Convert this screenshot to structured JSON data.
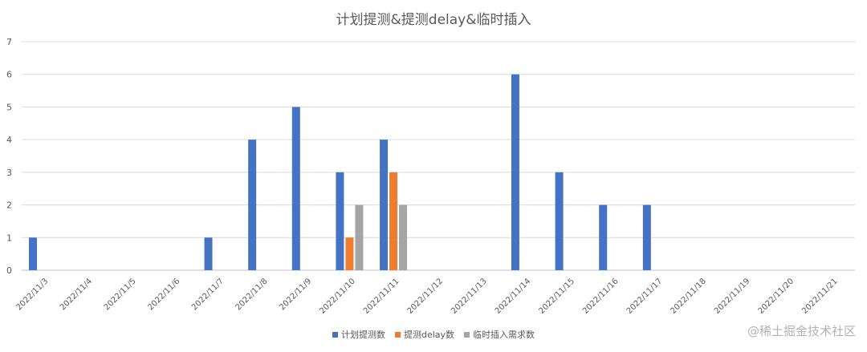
{
  "chart_data": {
    "type": "bar",
    "title": "计划提测&提测delay&临时插入",
    "xlabel": "",
    "ylabel": "",
    "ylim": [
      0,
      7
    ],
    "yticks": [
      0,
      1,
      2,
      3,
      4,
      5,
      6,
      7
    ],
    "grid": true,
    "legend_position": "bottom",
    "categories": [
      "2022/11/3",
      "2022/11/4",
      "2022/11/5",
      "2022/11/6",
      "2022/11/7",
      "2022/11/8",
      "2022/11/9",
      "2022/11/10",
      "2022/11/11",
      "2022/11/12",
      "2022/11/13",
      "2022/11/14",
      "2022/11/15",
      "2022/11/16",
      "2022/11/17",
      "2022/11/18",
      "2022/11/19",
      "2022/11/20",
      "2022/11/21"
    ],
    "series": [
      {
        "name": "计划提测数",
        "color": "#4472c4",
        "values": [
          1,
          0,
          0,
          0,
          1,
          4,
          5,
          3,
          4,
          0,
          0,
          6,
          3,
          2,
          2,
          0,
          0,
          0,
          0
        ]
      },
      {
        "name": "提测delay数",
        "color": "#ed7d31",
        "values": [
          0,
          0,
          0,
          0,
          0,
          0,
          0,
          1,
          3,
          0,
          0,
          0,
          0,
          0,
          0,
          0,
          0,
          0,
          0
        ]
      },
      {
        "name": "临时插入需求数",
        "color": "#a5a5a5",
        "values": [
          0,
          0,
          0,
          0,
          0,
          0,
          0,
          2,
          2,
          0,
          0,
          0,
          0,
          0,
          0,
          0,
          0,
          0,
          0
        ]
      }
    ]
  },
  "watermark": "@稀土掘金技术社区"
}
